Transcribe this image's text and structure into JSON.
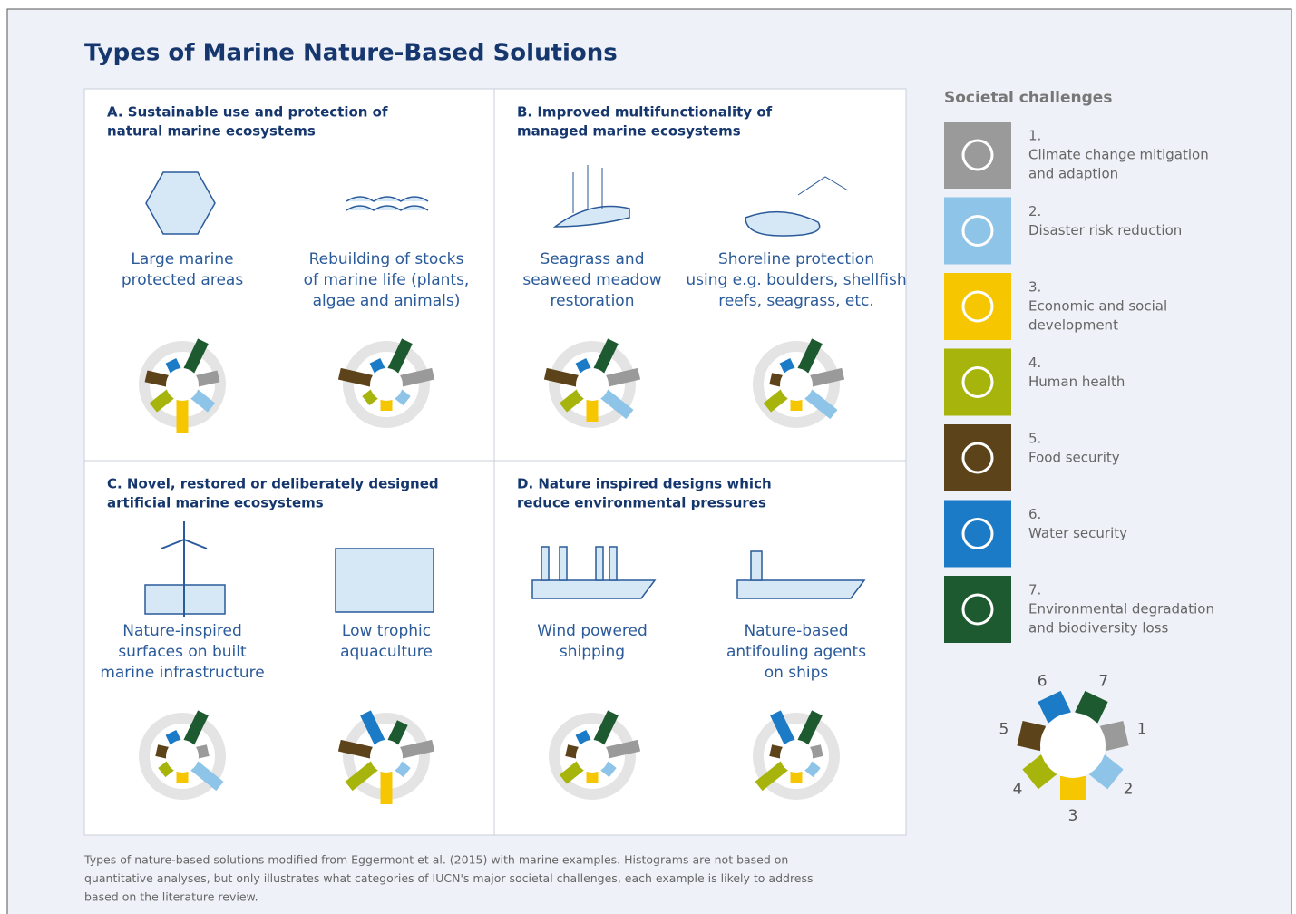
{
  "title": "Types of Marine Nature-Based Solutions",
  "panels": [
    {
      "heading": [
        "A. Sustainable use and protection of",
        "natural marine ecosystems"
      ],
      "examples": [
        {
          "label": [
            "Large marine",
            "protected areas"
          ],
          "scores": [
            2,
            2,
            3,
            2,
            2,
            1,
            3
          ]
        },
        {
          "label": [
            "Rebuilding of stocks",
            "of marine life (plants,",
            "algae and animals)"
          ],
          "scores": [
            3,
            1,
            1,
            1,
            3,
            1,
            3
          ]
        }
      ]
    },
    {
      "heading": [
        "B. Improved multifunctionality of",
        "managed marine ecosystems"
      ],
      "examples": [
        {
          "label": [
            "Seagrass and",
            "seaweed meadow",
            "restoration"
          ],
          "scores": [
            3,
            3,
            2,
            2,
            3,
            1,
            3
          ]
        },
        {
          "label": [
            "Shoreline protection",
            "using e.g. boulders, shellfish",
            "reefs, seagrass, etc."
          ],
          "scores": [
            3,
            3,
            1,
            2,
            1,
            1,
            3
          ]
        }
      ]
    },
    {
      "heading": [
        "C. Novel, restored or deliberately designed",
        "artificial marine ecosystems"
      ],
      "examples": [
        {
          "label": [
            "Nature-inspired",
            "surfaces on built",
            "marine infrastructure"
          ],
          "scores": [
            1,
            3,
            1,
            1,
            1,
            1,
            3
          ]
        },
        {
          "label": [
            "Low trophic",
            "aquaculture"
          ],
          "scores": [
            3,
            1,
            3,
            3,
            3,
            3,
            2
          ]
        }
      ]
    },
    {
      "heading": [
        "D. Nature inspired designs which",
        "reduce environmental pressures"
      ],
      "examples": [
        {
          "label": [
            "Wind powered",
            "shipping"
          ],
          "scores": [
            3,
            1,
            1,
            2,
            1,
            1,
            3
          ]
        },
        {
          "label": [
            "Nature-based",
            "antifouling agents",
            "on ships"
          ],
          "scores": [
            1,
            1,
            1,
            3,
            1,
            3,
            3
          ]
        }
      ]
    }
  ],
  "challenges_title": "Societal  challenges",
  "challenges": [
    {
      "number": "1.",
      "label": [
        "Climate change mitigation",
        "and adaption"
      ],
      "color": "#9a9a9a"
    },
    {
      "number": "2.",
      "label": [
        "Disaster risk reduction"
      ],
      "color": "#8ec4e8"
    },
    {
      "number": "3.",
      "label": [
        "Economic and social",
        "development"
      ],
      "color": "#f6c700"
    },
    {
      "number": "4.",
      "label": [
        "Human health"
      ],
      "color": "#a7b40c"
    },
    {
      "number": "5.",
      "label": [
        "Food security"
      ],
      "color": "#5c4319"
    },
    {
      "number": "6.",
      "label": [
        "Water security"
      ],
      "color": "#1b7bc7"
    },
    {
      "number": "7.",
      "label": [
        "Environmental degradation",
        "and biodiversity loss"
      ],
      "color": "#1e5a30"
    }
  ],
  "key_numbers": [
    "1",
    "2",
    "3",
    "4",
    "5",
    "6",
    "7"
  ],
  "caption": [
    "Types of nature-based solutions modified from Eggermont et al. (2015) with marine examples. Histograms are not based on",
    "quantitative analyses, but only illustrates what categories of IUCN's major societal challenges, each example is likely  to address",
    "based on the literature review."
  ]
}
